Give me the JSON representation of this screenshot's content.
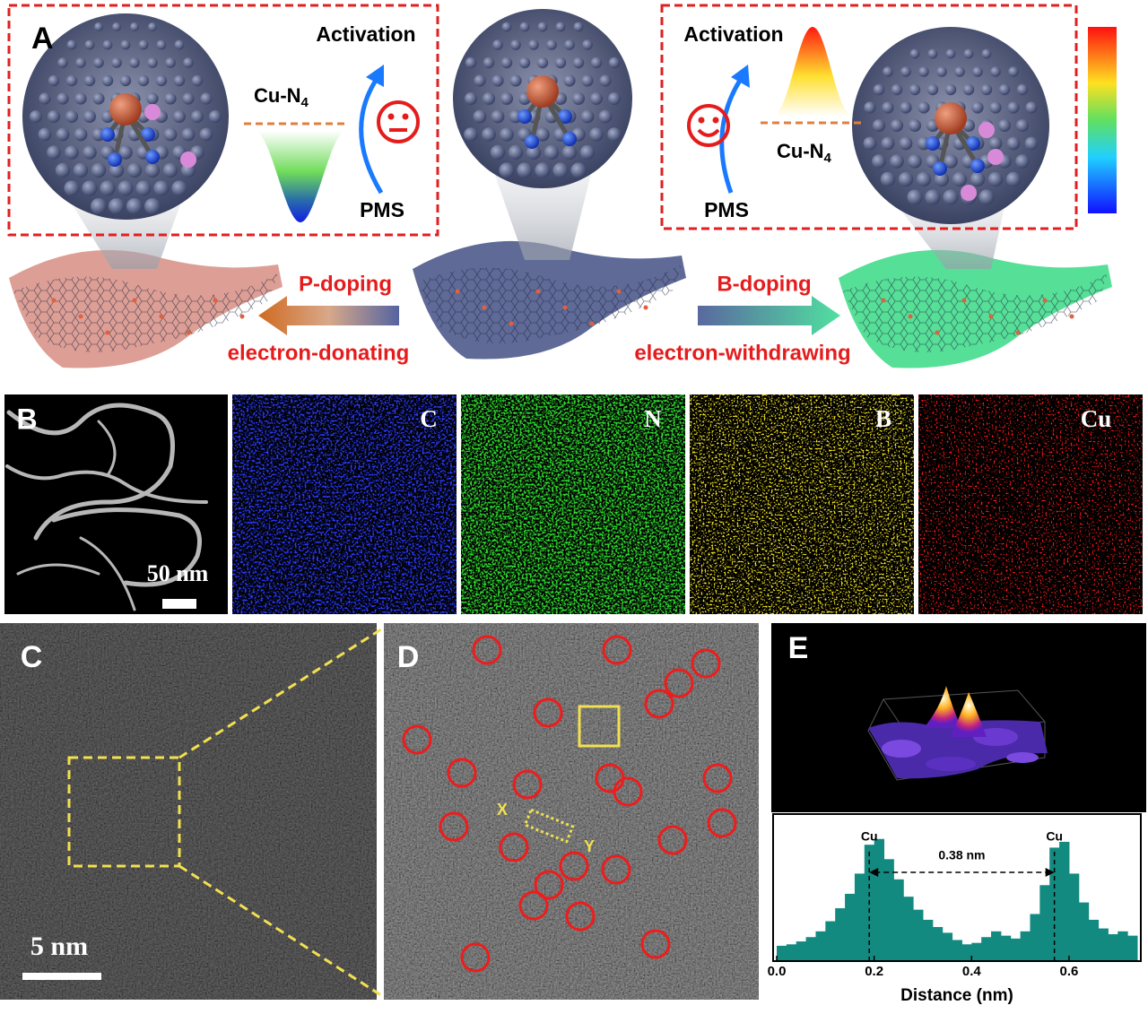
{
  "panel_a": {
    "label": "A",
    "left": {
      "activation": "Activation",
      "cu_n": "Cu-N",
      "cu_n_sub": "4",
      "pms": "PMS"
    },
    "right": {
      "activation": "Activation",
      "cu_n": "Cu-N",
      "cu_n_sub": "4",
      "pms": "PMS"
    },
    "p_doping": "P-doping",
    "electron_donating": "electron-donating",
    "b_doping": "B-doping",
    "electron_withdrawing": "electron-withdrawing"
  },
  "panel_b": {
    "label": "B",
    "scale_bar": "50 nm",
    "maps": [
      "C",
      "N",
      "B",
      "Cu"
    ]
  },
  "panel_c": {
    "label": "C",
    "scale_bar": "5 nm"
  },
  "panel_d": {
    "label": "D",
    "x_marker": "X",
    "y_marker": "Y"
  },
  "panel_e": {
    "label": "E"
  },
  "chart_data": {
    "type": "bar",
    "x_label": "Distance (nm)",
    "x": [
      0,
      0.02,
      0.04,
      0.06,
      0.08,
      0.1,
      0.12,
      0.14,
      0.16,
      0.18,
      0.2,
      0.22,
      0.24,
      0.26,
      0.28,
      0.3,
      0.32,
      0.34,
      0.36,
      0.38,
      0.4,
      0.42,
      0.44,
      0.46,
      0.48,
      0.5,
      0.52,
      0.54,
      0.56,
      0.58,
      0.6,
      0.62,
      0.64,
      0.66,
      0.68,
      0.7,
      0.72
    ],
    "values": [
      0.1,
      0.11,
      0.13,
      0.16,
      0.2,
      0.27,
      0.36,
      0.46,
      0.6,
      0.8,
      0.84,
      0.7,
      0.56,
      0.44,
      0.35,
      0.28,
      0.23,
      0.19,
      0.14,
      0.11,
      0.12,
      0.16,
      0.2,
      0.17,
      0.15,
      0.2,
      0.32,
      0.52,
      0.78,
      0.82,
      0.6,
      0.4,
      0.28,
      0.22,
      0.18,
      0.2,
      0.17
    ],
    "color": "#138a80",
    "xlim": [
      0,
      0.74
    ],
    "ylim": [
      0,
      1
    ],
    "xticks": [
      {
        "value": 0,
        "label": "0.0"
      },
      0.2,
      0.4,
      0.6
    ],
    "annotations": [
      {
        "text": "Cu",
        "x": 0.19
      },
      {
        "text": "Cu",
        "x": 0.57
      }
    ],
    "distance_label": "0.38 nm"
  }
}
